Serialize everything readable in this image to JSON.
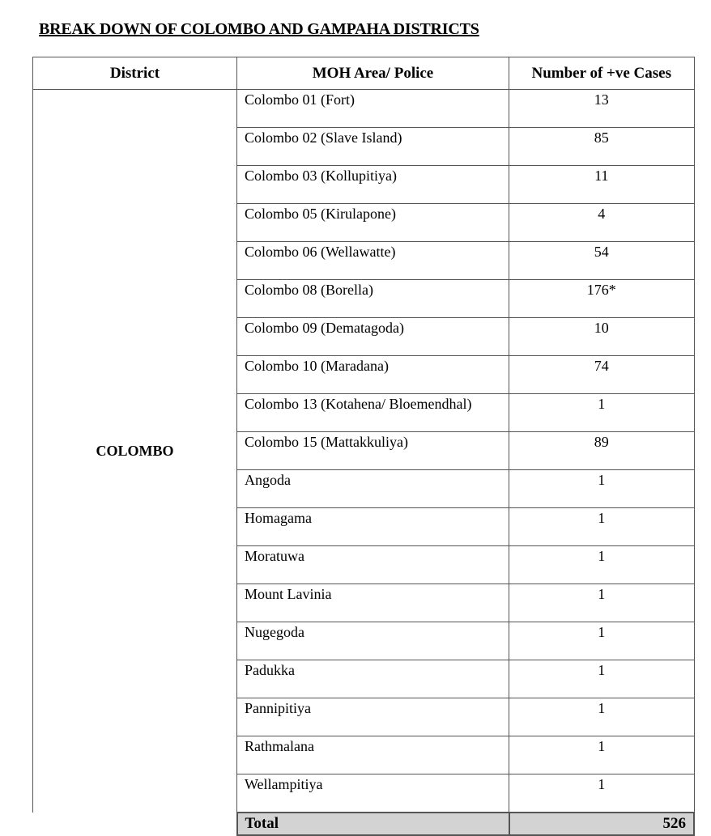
{
  "title": "BREAK DOWN OF COLOMBO AND GAMPAHA DISTRICTS",
  "headers": {
    "district": "District",
    "area": "MOH Area/ Police",
    "cases": "Number of +ve Cases"
  },
  "district": "COLOMBO",
  "rows": [
    {
      "area": "Colombo 01 (Fort)",
      "cases": "13"
    },
    {
      "area": "Colombo 02 (Slave Island)",
      "cases": "85"
    },
    {
      "area": "Colombo 03 (Kollupitiya)",
      "cases": "11"
    },
    {
      "area": "Colombo 05 (Kirulapone)",
      "cases": "4"
    },
    {
      "area": "Colombo 06 (Wellawatte)",
      "cases": "54"
    },
    {
      "area": "Colombo 08 (Borella)",
      "cases": "176*"
    },
    {
      "area": "Colombo 09 (Dematagoda)",
      "cases": "10"
    },
    {
      "area": "Colombo 10 (Maradana)",
      "cases": "74"
    },
    {
      "area": "Colombo 13 (Kotahena/ Bloemendhal)",
      "cases": "1"
    },
    {
      "area": "Colombo 15 (Mattakkuliya)",
      "cases": "89"
    },
    {
      "area": "Angoda",
      "cases": "1"
    },
    {
      "area": "Homagama",
      "cases": "1"
    },
    {
      "area": "Moratuwa",
      "cases": "1"
    },
    {
      "area": "Mount Lavinia",
      "cases": "1"
    },
    {
      "area": "Nugegoda",
      "cases": "1"
    },
    {
      "area": "Padukka",
      "cases": "1"
    },
    {
      "area": "Pannipitiya",
      "cases": "1"
    },
    {
      "area": "Rathmalana",
      "cases": "1"
    },
    {
      "area": "Wellampitiya",
      "cases": "1"
    }
  ],
  "total": {
    "label": "Total",
    "value": "526"
  }
}
